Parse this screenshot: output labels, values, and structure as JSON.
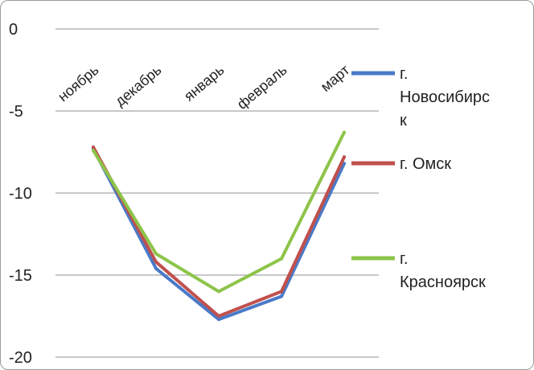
{
  "chart_data": {
    "type": "line",
    "categories": [
      "ноябрь",
      "декабрь",
      "январь",
      "февраль",
      "март"
    ],
    "ylim": [
      -20,
      0
    ],
    "yticks": [
      0,
      -5,
      -10,
      -15,
      -20
    ],
    "grid": true,
    "legend_position": "right",
    "series": [
      {
        "name": "г. Новосибирск",
        "legend_lines": [
          "г.",
          "Новосибирс",
          "к"
        ],
        "color": "#4a7ac8",
        "values": [
          -7.3,
          -14.6,
          -17.7,
          -16.3,
          -8.2
        ]
      },
      {
        "name": "г. Омск",
        "legend_lines": [
          "г. Омск"
        ],
        "color": "#c0504d",
        "values": [
          -7.2,
          -14.2,
          -17.5,
          -16.0,
          -7.8
        ]
      },
      {
        "name": "г. Красноярск",
        "legend_lines": [
          "г.",
          "Красноярск"
        ],
        "color": "#8dc449",
        "values": [
          -7.4,
          -13.7,
          -16.0,
          -14.0,
          -6.3
        ]
      }
    ]
  }
}
